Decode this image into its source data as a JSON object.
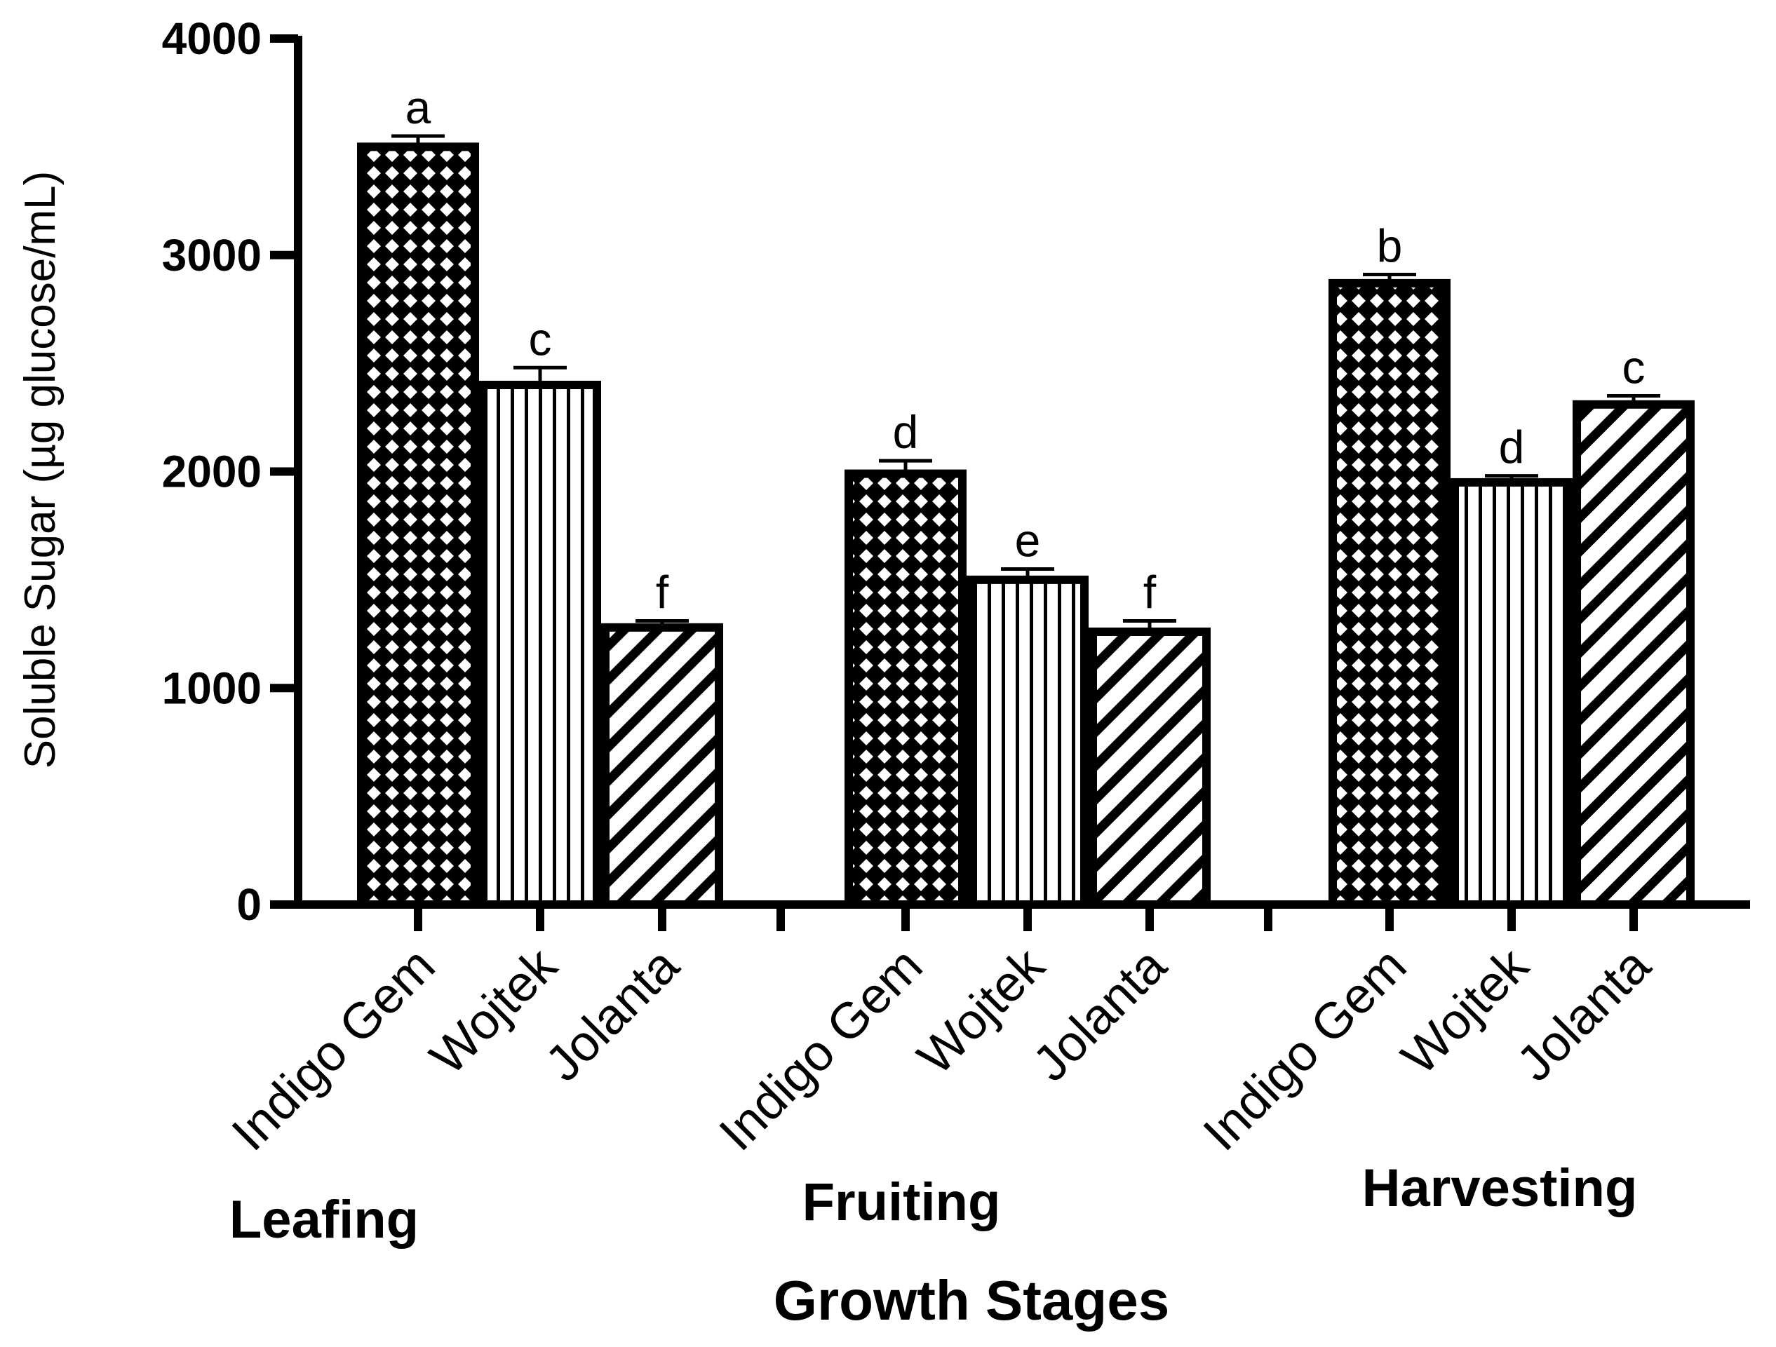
{
  "chart_data": {
    "type": "bar",
    "title": "",
    "ylabel": "Soluble Sugar (µg glucose/mL)",
    "xlabel": "Growth Stages",
    "ylim": [
      0,
      4000
    ],
    "yticks": [
      0,
      1000,
      2000,
      3000,
      4000
    ],
    "groups": [
      {
        "name": "Leafing",
        "bars": [
          {
            "category": "Indigo Gem",
            "value": 3500,
            "error": 50,
            "letter": "a",
            "pattern": "crosshatch"
          },
          {
            "category": "Wojtek",
            "value": 2400,
            "error": 80,
            "letter": "c",
            "pattern": "vertical"
          },
          {
            "category": "Jolanta",
            "value": 1280,
            "error": 30,
            "letter": "f",
            "pattern": "diagonal"
          }
        ]
      },
      {
        "name": "Fruiting",
        "bars": [
          {
            "category": "Indigo Gem",
            "value": 1990,
            "error": 60,
            "letter": "d",
            "pattern": "crosshatch"
          },
          {
            "category": "Wojtek",
            "value": 1500,
            "error": 50,
            "letter": "e",
            "pattern": "vertical"
          },
          {
            "category": "Jolanta",
            "value": 1260,
            "error": 50,
            "letter": "f",
            "pattern": "diagonal"
          }
        ]
      },
      {
        "name": "Harvesting",
        "bars": [
          {
            "category": "Indigo Gem",
            "value": 2870,
            "error": 40,
            "letter": "b",
            "pattern": "crosshatch"
          },
          {
            "category": "Wojtek",
            "value": 1950,
            "error": 30,
            "letter": "d",
            "pattern": "vertical"
          },
          {
            "category": "Jolanta",
            "value": 2310,
            "error": 40,
            "letter": "c",
            "pattern": "diagonal"
          }
        ]
      }
    ]
  }
}
